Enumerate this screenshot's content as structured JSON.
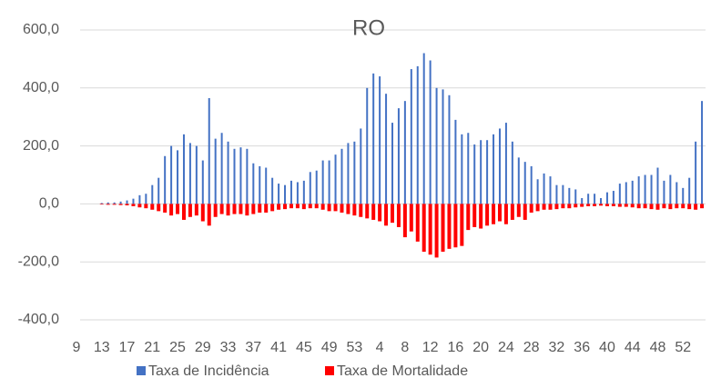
{
  "chart_data": {
    "type": "bar",
    "title": "RO",
    "categories": [
      "9",
      null,
      null,
      null,
      "13",
      null,
      null,
      null,
      "17",
      null,
      null,
      null,
      "21",
      null,
      null,
      null,
      "25",
      null,
      null,
      null,
      "29",
      null,
      null,
      null,
      "33",
      null,
      null,
      null,
      "37",
      null,
      null,
      null,
      "41",
      null,
      null,
      null,
      "45",
      null,
      null,
      null,
      "49",
      null,
      null,
      null,
      "53",
      null,
      null,
      null,
      "4",
      null,
      null,
      null,
      "8",
      null,
      null,
      null,
      "12",
      null,
      null,
      null,
      "16",
      null,
      null,
      null,
      "20",
      null,
      null,
      null,
      "24",
      null,
      null,
      null,
      "28",
      null,
      null,
      null,
      "32",
      null,
      null,
      null,
      "36",
      null,
      null,
      null,
      "40",
      null,
      null,
      null,
      "44",
      null,
      null,
      null,
      "48",
      null,
      null,
      null,
      "52",
      null,
      null,
      null
    ],
    "series": [
      {
        "name": "Taxa de Incidência",
        "color": "#4472c4",
        "values": [
          0,
          0,
          0,
          0,
          3,
          5,
          5,
          8,
          12,
          18,
          30,
          35,
          65,
          90,
          165,
          200,
          185,
          240,
          210,
          200,
          150,
          365,
          225,
          245,
          215,
          190,
          195,
          190,
          140,
          130,
          125,
          90,
          70,
          65,
          80,
          75,
          80,
          110,
          115,
          150,
          150,
          170,
          190,
          210,
          215,
          260,
          400,
          450,
          440,
          380,
          280,
          330,
          355,
          465,
          475,
          520,
          495,
          400,
          395,
          375,
          290,
          240,
          245,
          205,
          220,
          220,
          240,
          260,
          280,
          215,
          160,
          145,
          130,
          85,
          105,
          95,
          65,
          65,
          55,
          50,
          20,
          35,
          35,
          20,
          40,
          45,
          70,
          75,
          80,
          95,
          100,
          100,
          125,
          80,
          100,
          75,
          55,
          90,
          215,
          355
        ]
      },
      {
        "name": "Taxa de Mortalidade",
        "color": "#ff0000",
        "values": [
          0,
          0,
          0,
          0,
          -2,
          -3,
          -3,
          -4,
          -5,
          -8,
          -12,
          -15,
          -20,
          -25,
          -30,
          -40,
          -35,
          -55,
          -45,
          -40,
          -60,
          -75,
          -45,
          -35,
          -40,
          -35,
          -35,
          -40,
          -35,
          -30,
          -30,
          -25,
          -20,
          -18,
          -15,
          -15,
          -18,
          -15,
          -15,
          -20,
          -25,
          -25,
          -30,
          -35,
          -40,
          -45,
          -50,
          -55,
          -60,
          -75,
          -65,
          -80,
          -115,
          -95,
          -130,
          -165,
          -175,
          -185,
          -165,
          -155,
          -150,
          -145,
          -90,
          -80,
          -85,
          -75,
          -70,
          -60,
          -70,
          -55,
          -45,
          -55,
          -30,
          -25,
          -20,
          -20,
          -18,
          -15,
          -15,
          -12,
          -10,
          -8,
          -8,
          -6,
          -8,
          -8,
          -10,
          -10,
          -12,
          -15,
          -15,
          -18,
          -20,
          -15,
          -18,
          -15,
          -15,
          -18,
          -20,
          -15
        ]
      }
    ],
    "ylim": [
      -400,
      600
    ],
    "yticks": [
      {
        "value": -400,
        "label": "-400,0"
      },
      {
        "value": -200,
        "label": "-200,0"
      },
      {
        "value": 0,
        "label": "0,0"
      },
      {
        "value": 200,
        "label": "200,0"
      },
      {
        "value": 400,
        "label": "400,0"
      },
      {
        "value": 600,
        "label": "600,0"
      }
    ],
    "grid": true,
    "legend": "bottom"
  }
}
